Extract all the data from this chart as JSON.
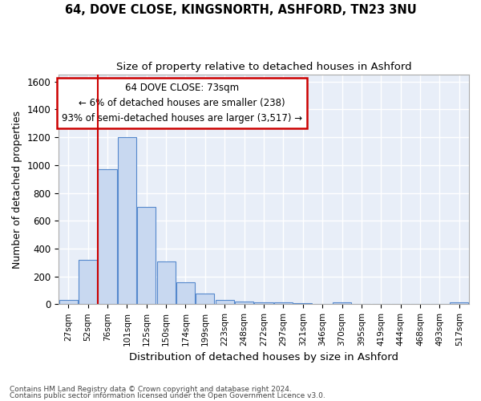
{
  "title1": "64, DOVE CLOSE, KINGSNORTH, ASHFORD, TN23 3NU",
  "title2": "Size of property relative to detached houses in Ashford",
  "xlabel": "Distribution of detached houses by size in Ashford",
  "ylabel": "Number of detached properties",
  "footer1": "Contains HM Land Registry data © Crown copyright and database right 2024.",
  "footer2": "Contains public sector information licensed under the Open Government Licence v3.0.",
  "annotation_title": "64 DOVE CLOSE: 73sqm",
  "annotation_line1": "← 6% of detached houses are smaller (238)",
  "annotation_line2": "93% of semi-detached houses are larger (3,517) →",
  "bar_categories": [
    "27sqm",
    "52sqm",
    "76sqm",
    "101sqm",
    "125sqm",
    "150sqm",
    "174sqm",
    "199sqm",
    "223sqm",
    "248sqm",
    "272sqm",
    "297sqm",
    "321sqm",
    "346sqm",
    "370sqm",
    "395sqm",
    "419sqm",
    "444sqm",
    "468sqm",
    "493sqm",
    "517sqm"
  ],
  "bar_values": [
    30,
    320,
    970,
    1200,
    700,
    310,
    155,
    75,
    30,
    20,
    15,
    15,
    10,
    0,
    15,
    0,
    0,
    0,
    0,
    0,
    15
  ],
  "bar_color": "#c8d8f0",
  "bar_edge_color": "#5588cc",
  "marker_color": "#cc0000",
  "marker_bin_index": 2,
  "ylim": [
    0,
    1650
  ],
  "yticks": [
    0,
    200,
    400,
    600,
    800,
    1000,
    1200,
    1400,
    1600
  ],
  "plot_bg_color": "#e8eef8",
  "fig_bg_color": "#ffffff",
  "grid_color": "#ffffff",
  "annotation_box_bg": "#ffffff",
  "annotation_box_edge": "#cc0000"
}
